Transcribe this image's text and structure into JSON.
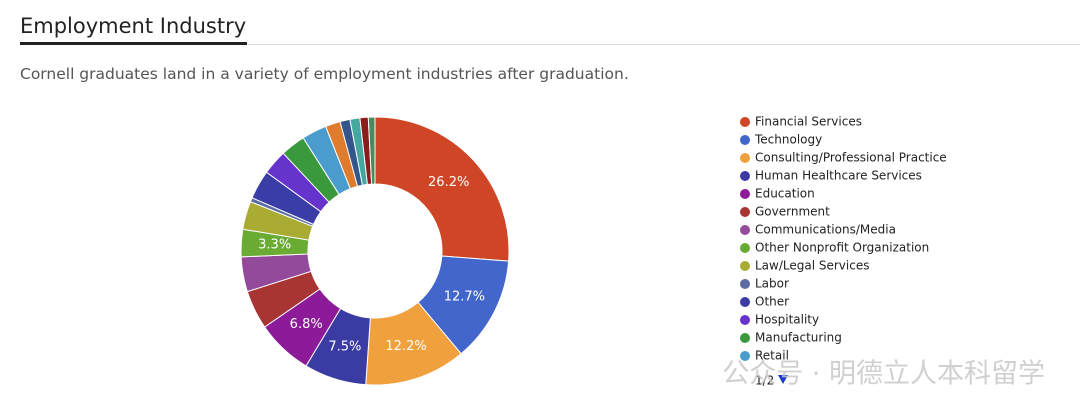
{
  "header": {
    "title": "Employment Industry",
    "description": "Cornell graduates land in a variety of employment industries after graduation."
  },
  "watermark": "公众号 · 明德立人本科留学",
  "chart_data": {
    "type": "pie",
    "donut": true,
    "categories": [
      "Financial Services",
      "Technology",
      "Consulting/Professional Practice",
      "Human Healthcare Services",
      "Education",
      "Government",
      "Communications/Media",
      "Other Nonprofit Organization",
      "Law/Legal Services",
      "Labor",
      "Other",
      "Hospitality",
      "Manufacturing",
      "Retail",
      null,
      null,
      null,
      null,
      null
    ],
    "values": [
      26.2,
      12.7,
      12.2,
      7.5,
      6.8,
      4.7,
      4.2,
      3.3,
      3.4,
      0.5,
      3.5,
      3.0,
      3.0,
      3.0,
      1.8,
      1.2,
      1.2,
      1.0,
      0.8
    ],
    "value_labels": [
      "26.2%",
      "12.7%",
      "12.2%",
      "7.5%",
      "6.8%",
      null,
      null,
      "3.3%",
      null,
      null,
      null,
      null,
      null,
      null,
      null,
      null,
      null,
      null,
      null
    ],
    "colors": [
      "#cf4627",
      "#4266cc",
      "#f0a03c",
      "#3a3ba3",
      "#8c1a99",
      "#a83434",
      "#944a9b",
      "#6aab33",
      "#a9ab33",
      "#5d6ba3",
      "#3b3da6",
      "#6633cc",
      "#3a993d",
      "#4a9ccc",
      "#de7b2c",
      "#33568c",
      "#44a8a0",
      "#8a1c1c",
      "#4b8a5c"
    ],
    "legend_page": "1/2"
  }
}
